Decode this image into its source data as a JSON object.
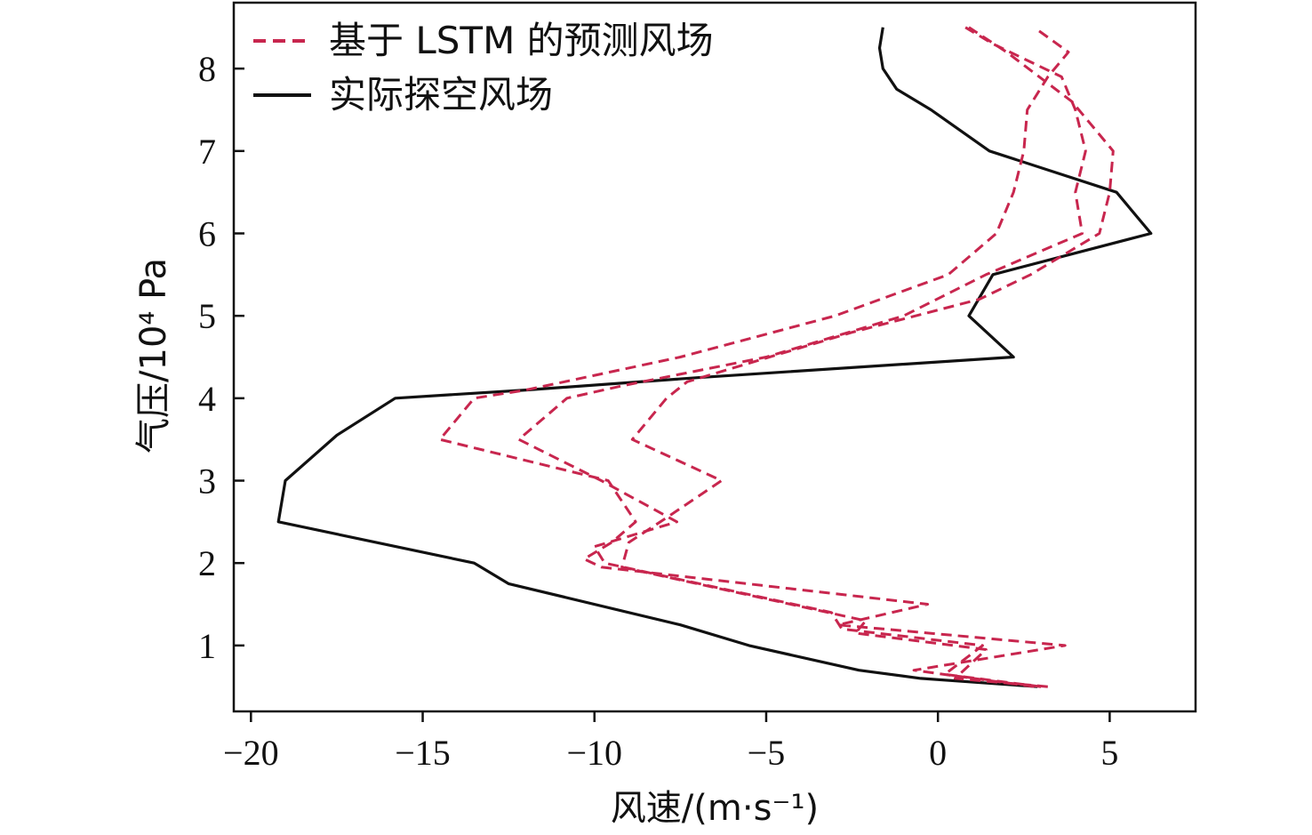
{
  "chart_data": {
    "type": "line",
    "title": "",
    "xlabel": "风速/(m·s⁻¹)",
    "ylabel": "气压/10⁴ Pa",
    "xlim": [
      -20.5,
      7.5
    ],
    "ylim": [
      0.2,
      8.8
    ],
    "xticks": [
      -20,
      -15,
      -10,
      -5,
      0,
      5
    ],
    "xtick_labels": [
      "−20",
      "−15",
      "−10",
      "−5",
      "0",
      "5"
    ],
    "yticks": [
      1,
      2,
      3,
      4,
      5,
      6,
      7,
      8
    ],
    "ytick_labels": [
      "1",
      "2",
      "3",
      "4",
      "5",
      "6",
      "7",
      "8"
    ],
    "grid": false,
    "legend_position": "top-left",
    "legend": [
      {
        "label": "基于 LSTM 的预测风场",
        "style": "dashed",
        "color": "#c8264e"
      },
      {
        "label": "实际探空风场",
        "style": "solid",
        "color": "#111111"
      }
    ],
    "series": [
      {
        "style": "solid",
        "color": "#111111",
        "points": [
          [
            2.9,
            0.5
          ],
          [
            -0.5,
            0.6
          ],
          [
            -2.3,
            0.7
          ],
          [
            -5.5,
            1.0
          ],
          [
            -7.5,
            1.25
          ],
          [
            -12.5,
            1.75
          ],
          [
            -13.5,
            2.0
          ],
          [
            -19.2,
            2.5
          ],
          [
            -19.0,
            3.0
          ],
          [
            -17.5,
            3.55
          ],
          [
            -15.8,
            4.0
          ],
          [
            -12,
            4.1
          ],
          [
            -7,
            4.25
          ],
          [
            2.2,
            4.5
          ],
          [
            0.9,
            5.0
          ],
          [
            1.6,
            5.5
          ],
          [
            6.2,
            6.0
          ],
          [
            5.2,
            6.5
          ],
          [
            1.5,
            7.0
          ],
          [
            -0.2,
            7.5
          ],
          [
            -1.2,
            7.75
          ],
          [
            -1.6,
            8.0
          ],
          [
            -1.7,
            8.25
          ],
          [
            -1.6,
            8.5
          ]
        ]
      },
      {
        "style": "dashed",
        "color": "#c8264e",
        "points": [
          [
            2.8,
            0.5
          ],
          [
            -0.7,
            0.7
          ],
          [
            3.7,
            1.0
          ],
          [
            -2.9,
            1.25
          ],
          [
            -0.3,
            1.5
          ],
          [
            -9.8,
            1.95
          ],
          [
            -10.3,
            2.05
          ],
          [
            -9.5,
            2.25
          ],
          [
            -8.8,
            2.5
          ],
          [
            -9.6,
            3.0
          ],
          [
            -14.5,
            3.5
          ],
          [
            -13.5,
            4.0
          ],
          [
            -12.0,
            4.1
          ],
          [
            -7.5,
            4.5
          ],
          [
            -3,
            5.0
          ],
          [
            0.3,
            5.5
          ],
          [
            1.7,
            6.0
          ],
          [
            2.2,
            6.5
          ],
          [
            2.5,
            7.0
          ],
          [
            2.6,
            7.5
          ],
          [
            3.2,
            7.9
          ],
          [
            3.8,
            8.2
          ],
          [
            2.8,
            8.5
          ]
        ]
      },
      {
        "style": "dashed",
        "color": "#c8264e",
        "points": [
          [
            3.0,
            0.5
          ],
          [
            0.2,
            0.65
          ],
          [
            1.3,
            1.0
          ],
          [
            -2.8,
            1.2
          ],
          [
            -3.1,
            1.4
          ],
          [
            -9.7,
            2.0
          ],
          [
            -10.0,
            2.2
          ],
          [
            -7.6,
            2.5
          ],
          [
            -9.8,
            3.0
          ],
          [
            -12.2,
            3.5
          ],
          [
            -10.8,
            4.0
          ],
          [
            -9.2,
            4.15
          ],
          [
            -5.0,
            4.5
          ],
          [
            -1,
            5.0
          ],
          [
            1.4,
            5.5
          ],
          [
            4.2,
            6.0
          ],
          [
            4.0,
            6.5
          ],
          [
            4.3,
            7.0
          ],
          [
            4.0,
            7.5
          ],
          [
            3.6,
            7.9
          ],
          [
            1.6,
            8.3
          ],
          [
            0.8,
            8.5
          ]
        ]
      },
      {
        "style": "dashed",
        "color": "#c8264e",
        "points": [
          [
            3.2,
            0.5
          ],
          [
            0.5,
            0.6
          ],
          [
            1.4,
            0.95
          ],
          [
            -2.4,
            1.15
          ],
          [
            -2.1,
            1.3
          ],
          [
            -9.2,
            1.95
          ],
          [
            -9.0,
            2.25
          ],
          [
            -7.9,
            2.55
          ],
          [
            -6.3,
            3.0
          ],
          [
            -8.9,
            3.5
          ],
          [
            -7.9,
            4.0
          ],
          [
            -7.3,
            4.2
          ],
          [
            -2.5,
            4.8
          ],
          [
            1.2,
            5.2
          ],
          [
            2.7,
            5.5
          ],
          [
            4.7,
            6.0
          ],
          [
            5.0,
            6.5
          ],
          [
            5.1,
            7.0
          ],
          [
            3.9,
            7.6
          ],
          [
            2.0,
            8.2
          ],
          [
            0.9,
            8.5
          ]
        ]
      }
    ]
  }
}
